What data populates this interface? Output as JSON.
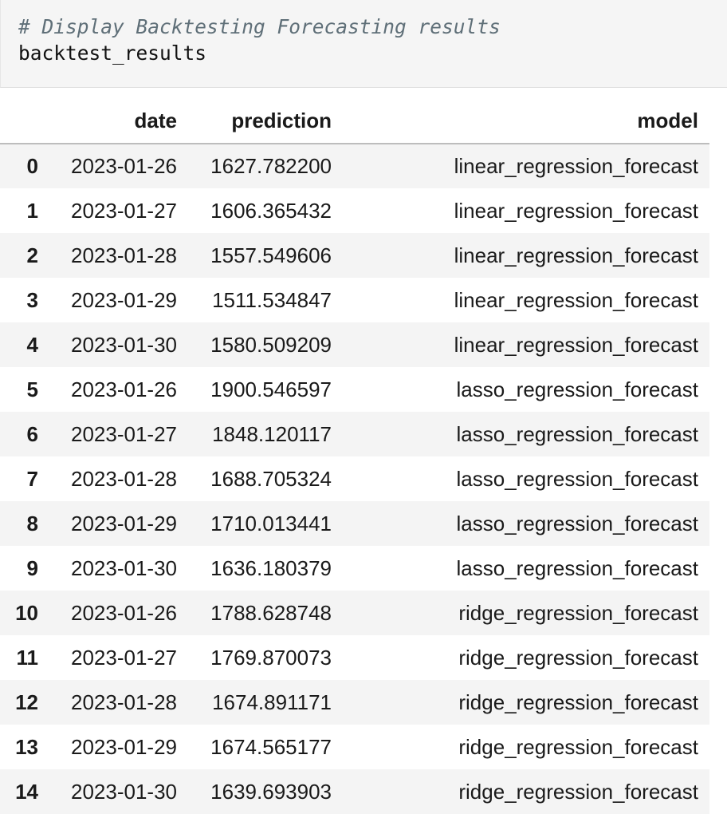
{
  "code_cell": {
    "comment": "# Display Backtesting Forecasting results",
    "code": "backtest_results"
  },
  "dataframe": {
    "columns": [
      "",
      "date",
      "prediction",
      "model"
    ],
    "rows": [
      {
        "index": "0",
        "date": "2023-01-26",
        "prediction": "1627.782200",
        "model": "linear_regression_forecast"
      },
      {
        "index": "1",
        "date": "2023-01-27",
        "prediction": "1606.365432",
        "model": "linear_regression_forecast"
      },
      {
        "index": "2",
        "date": "2023-01-28",
        "prediction": "1557.549606",
        "model": "linear_regression_forecast"
      },
      {
        "index": "3",
        "date": "2023-01-29",
        "prediction": "1511.534847",
        "model": "linear_regression_forecast"
      },
      {
        "index": "4",
        "date": "2023-01-30",
        "prediction": "1580.509209",
        "model": "linear_regression_forecast"
      },
      {
        "index": "5",
        "date": "2023-01-26",
        "prediction": "1900.546597",
        "model": "lasso_regression_forecast"
      },
      {
        "index": "6",
        "date": "2023-01-27",
        "prediction": "1848.120117",
        "model": "lasso_regression_forecast"
      },
      {
        "index": "7",
        "date": "2023-01-28",
        "prediction": "1688.705324",
        "model": "lasso_regression_forecast"
      },
      {
        "index": "8",
        "date": "2023-01-29",
        "prediction": "1710.013441",
        "model": "lasso_regression_forecast"
      },
      {
        "index": "9",
        "date": "2023-01-30",
        "prediction": "1636.180379",
        "model": "lasso_regression_forecast"
      },
      {
        "index": "10",
        "date": "2023-01-26",
        "prediction": "1788.628748",
        "model": "ridge_regression_forecast"
      },
      {
        "index": "11",
        "date": "2023-01-27",
        "prediction": "1769.870073",
        "model": "ridge_regression_forecast"
      },
      {
        "index": "12",
        "date": "2023-01-28",
        "prediction": "1674.891171",
        "model": "ridge_regression_forecast"
      },
      {
        "index": "13",
        "date": "2023-01-29",
        "prediction": "1674.565177",
        "model": "ridge_regression_forecast"
      },
      {
        "index": "14",
        "date": "2023-01-30",
        "prediction": "1639.693903",
        "model": "ridge_regression_forecast"
      }
    ]
  }
}
